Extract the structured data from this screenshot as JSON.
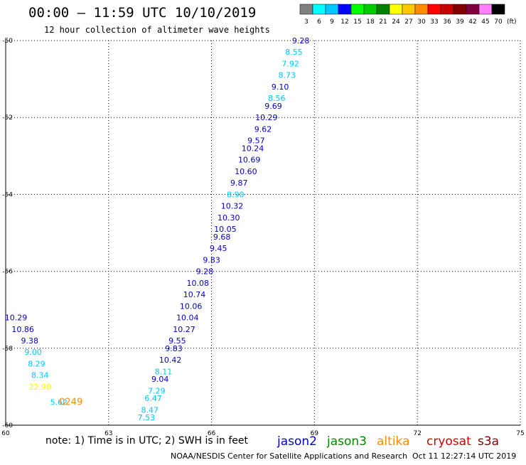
{
  "header": {
    "title": "00:00 – 11:59 UTC 10/10/2019",
    "subtitle": "12 hour collection of altimeter wave heights"
  },
  "colorbar": {
    "labels": [
      "3",
      "6",
      "9",
      "12",
      "15",
      "18",
      "21",
      "24",
      "27",
      "30",
      "33",
      "36",
      "39",
      "42",
      "45",
      "70"
    ],
    "unit": "(ft)",
    "colors": [
      "#808080",
      "#00ffff",
      "#00c8ff",
      "#0000ff",
      "#00ff00",
      "#00cc00",
      "#008000",
      "#ffff00",
      "#ffc800",
      "#ff8c00",
      "#ff0000",
      "#c80000",
      "#800000",
      "#800040",
      "#ff80ff",
      "#000000"
    ]
  },
  "footer": {
    "note": "note: 1) Time is in UTC; 2) SWH is in feet",
    "credit": "NOAA/NESDIS Center for Satellite Applications and Research",
    "timestamp": "Oct 11 12:27:14 UTC 2019",
    "satellites": [
      {
        "name": "jason2",
        "color": "#0000cc"
      },
      {
        "name": "jason3",
        "color": "#008800"
      },
      {
        "name": "altika",
        "color": "#ff8c00"
      },
      {
        "name": "cryosat",
        "color": "#cc0000"
      },
      {
        "name": "s3a",
        "color": "#800000"
      }
    ]
  },
  "chart_data": {
    "type": "scatter",
    "xlim": [
      60,
      75
    ],
    "ylim": [
      -60,
      -50
    ],
    "x_ticks": [
      "60",
      "63",
      "66",
      "69",
      "72",
      "75"
    ],
    "y_ticks": [
      "-50",
      "-52",
      "-54",
      "-56",
      "-58",
      "-60"
    ],
    "grid": "dotted",
    "series": [
      {
        "name": "jason2",
        "points": [
          {
            "x": 60.3,
            "y": -57.2,
            "label": "10.29",
            "color": "#0000cc"
          },
          {
            "x": 60.5,
            "y": -57.5,
            "label": "10.86",
            "color": "#0000cc"
          },
          {
            "x": 60.7,
            "y": -57.8,
            "label": "9.38",
            "color": "#0000cc"
          },
          {
            "x": 60.8,
            "y": -58.1,
            "label": "9.00",
            "color": "#00c8ff"
          },
          {
            "x": 60.9,
            "y": -58.4,
            "label": "8.29",
            "color": "#00c8ff"
          },
          {
            "x": 61.0,
            "y": -58.7,
            "label": "8.34",
            "color": "#00c8ff"
          },
          {
            "x": 61.0,
            "y": -59.0,
            "label": "22.90",
            "color": "#ffff00"
          },
          {
            "x": 61.55,
            "y": -59.4,
            "label": "5.62",
            "color": "#00c8ff"
          },
          {
            "x": 61.9,
            "y": -59.4,
            "label": "0249",
            "color": "#ff8c00",
            "time": true
          }
        ]
      },
      {
        "name": "s3a",
        "points": [
          {
            "x": 68.6,
            "y": -50.0,
            "label": "9.28",
            "color": "#0000cc"
          },
          {
            "x": 68.4,
            "y": -50.3,
            "label": "8.55",
            "color": "#00c8ff"
          },
          {
            "x": 68.3,
            "y": -50.6,
            "label": "7.92",
            "color": "#00c8ff"
          },
          {
            "x": 68.2,
            "y": -50.9,
            "label": "8.73",
            "color": "#00c8ff"
          },
          {
            "x": 68.0,
            "y": -51.2,
            "label": "9.10",
            "color": "#0000cc"
          },
          {
            "x": 67.9,
            "y": -51.5,
            "label": "8.56",
            "color": "#00c8ff"
          },
          {
            "x": 67.8,
            "y": -51.7,
            "label": "9.69",
            "color": "#0000cc"
          },
          {
            "x": 67.6,
            "y": -52.0,
            "label": "10.29",
            "color": "#0000cc"
          },
          {
            "x": 67.5,
            "y": -52.3,
            "label": "9.62",
            "color": "#0000cc"
          },
          {
            "x": 67.3,
            "y": -52.6,
            "label": "9.57",
            "color": "#0000cc"
          },
          {
            "x": 67.2,
            "y": -52.8,
            "label": "10.24",
            "color": "#0000cc"
          },
          {
            "x": 67.1,
            "y": -53.1,
            "label": "10.69",
            "color": "#0000cc"
          },
          {
            "x": 67.0,
            "y": -53.4,
            "label": "10.60",
            "color": "#0000cc"
          },
          {
            "x": 66.8,
            "y": -53.7,
            "label": "9.87",
            "color": "#0000cc"
          },
          {
            "x": 66.7,
            "y": -54.0,
            "label": "8.90",
            "color": "#00c8ff"
          },
          {
            "x": 66.6,
            "y": -54.3,
            "label": "10.32",
            "color": "#0000cc"
          },
          {
            "x": 66.5,
            "y": -54.6,
            "label": "10.30",
            "color": "#0000cc"
          },
          {
            "x": 66.4,
            "y": -54.9,
            "label": "10.05",
            "color": "#0000cc"
          },
          {
            "x": 66.3,
            "y": -55.1,
            "label": "9.68",
            "color": "#0000cc"
          },
          {
            "x": 66.2,
            "y": -55.4,
            "label": "9.45",
            "color": "#0000cc"
          },
          {
            "x": 66.0,
            "y": -55.7,
            "label": "9.83",
            "color": "#0000cc"
          },
          {
            "x": 65.8,
            "y": -56.0,
            "label": "9.28",
            "color": "#0000cc"
          },
          {
            "x": 65.6,
            "y": -56.3,
            "label": "10.08",
            "color": "#0000cc"
          },
          {
            "x": 65.5,
            "y": -56.6,
            "label": "10.74",
            "color": "#0000cc"
          },
          {
            "x": 65.4,
            "y": -56.9,
            "label": "10.06",
            "color": "#0000cc"
          },
          {
            "x": 65.3,
            "y": -57.2,
            "label": "10.04",
            "color": "#0000cc"
          },
          {
            "x": 65.2,
            "y": -57.5,
            "label": "10.27",
            "color": "#0000cc"
          },
          {
            "x": 65.0,
            "y": -57.8,
            "label": "9.55",
            "color": "#0000cc"
          },
          {
            "x": 64.9,
            "y": -58.0,
            "label": "9.83",
            "color": "#0000cc"
          },
          {
            "x": 64.8,
            "y": -58.3,
            "label": "10.42",
            "color": "#0000cc"
          },
          {
            "x": 64.6,
            "y": -58.6,
            "label": "8.11",
            "color": "#00c8ff"
          },
          {
            "x": 64.5,
            "y": -58.8,
            "label": "9.04",
            "color": "#0000cc"
          },
          {
            "x": 64.4,
            "y": -59.1,
            "label": "7.29",
            "color": "#00c8ff"
          },
          {
            "x": 64.3,
            "y": -59.3,
            "label": "6.47",
            "color": "#00c8ff"
          },
          {
            "x": 64.2,
            "y": -59.6,
            "label": "8.47",
            "color": "#00c8ff"
          },
          {
            "x": 64.1,
            "y": -59.8,
            "label": "7.53",
            "color": "#00c8ff"
          }
        ]
      }
    ]
  }
}
